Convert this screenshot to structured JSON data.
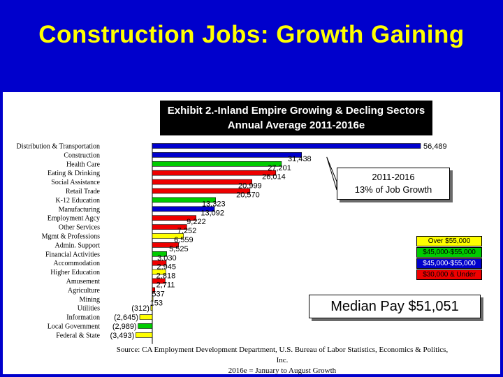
{
  "slide": {
    "title": "Construction Jobs:  Growth Gaining"
  },
  "exhibit": {
    "line1": "Exhibit 2.-Inland Empire Growing & Decling Sectors",
    "line2": "Annual Average 2011-2016e"
  },
  "callout": {
    "line1": "2011-2016",
    "line2": "13% of Job Growth"
  },
  "median": {
    "text": "Median Pay $51,051"
  },
  "source": {
    "line1": "Source:  CA Employment Development Department, U.S. Bureau of Labor Statistics, Economics & Politics, Inc.",
    "line2": "2016e = January to August Growth"
  },
  "legend": [
    {
      "label": "Over $55,000",
      "color": "#ffff00",
      "text_color": "#000000"
    },
    {
      "label": "$45,000-$55,000",
      "color": "#00cc00",
      "text_color": "#000000"
    },
    {
      "label": "$45,000-$55,000",
      "color": "#0000cc",
      "text_color": "#ffffff"
    },
    {
      "label": "$30,000 & Under",
      "color": "#ee0000",
      "text_color": "#000000"
    }
  ],
  "colors": {
    "background": "#0000cc",
    "title": "#ffff00",
    "blue": "#0000cc",
    "green": "#00cc00",
    "red": "#ee0000",
    "yellow": "#ffff00"
  },
  "chart_data": {
    "type": "bar",
    "orientation": "horizontal",
    "categories": [
      "Distribution & Transportation",
      "Construction",
      "Health Care",
      "Eating & Drinking",
      "Social Assistance",
      "Retail Trade",
      "K-12 Education",
      "Manufacturing",
      "Employment Agcy",
      "Other Services",
      "Mgmt & Professions",
      "Admin. Support",
      "Financial Activities",
      "Accommodation",
      "Higher Education",
      "Amusement",
      "Agriculture",
      "Mining",
      "Utilities",
      "Information",
      "Local Government",
      "Federal & State"
    ],
    "values": [
      56489,
      31438,
      27201,
      26014,
      20999,
      20570,
      13323,
      13092,
      9222,
      7252,
      6559,
      5525,
      3030,
      2945,
      2818,
      2711,
      537,
      153,
      -312,
      -2645,
      -2989,
      -3493
    ],
    "value_labels": [
      "56,489",
      "31,438",
      "27,201",
      "26,014",
      "20,999",
      "20,570",
      "13,323",
      "13,092",
      "9,222",
      "7,252",
      "6,559",
      "5,525",
      "3,030",
      "2,945",
      "2,818",
      "2,711",
      "537",
      "153",
      "(312)",
      "(2,645)",
      "(2,989)",
      "(3,493)"
    ],
    "pay_group": [
      "blue",
      "blue",
      "green",
      "red",
      "red",
      "red",
      "green",
      "blue",
      "red",
      "red",
      "yellow",
      "red",
      "green",
      "red",
      "yellow",
      "red",
      "red",
      "yellow",
      "yellow",
      "yellow",
      "green",
      "yellow"
    ],
    "xlim": [
      -3493,
      56489
    ]
  }
}
